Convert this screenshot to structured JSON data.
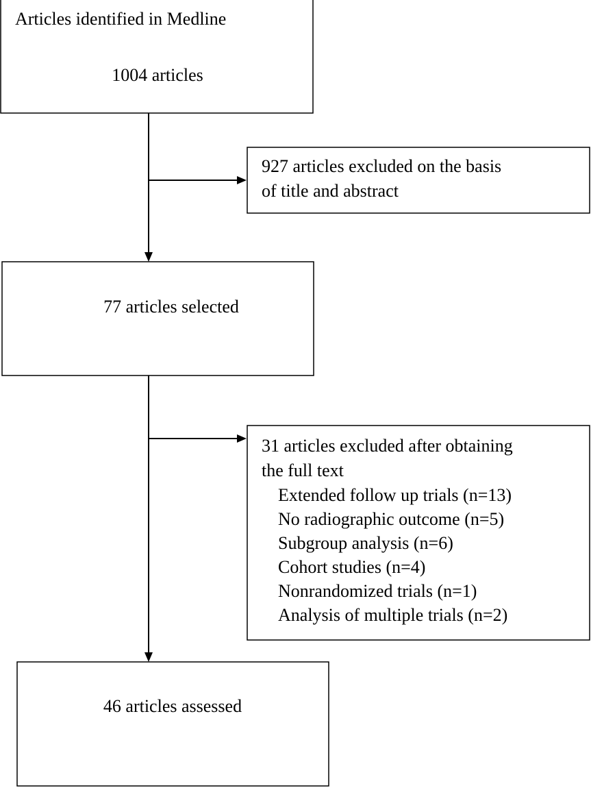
{
  "nodes": [
    {
      "lines": [
        "Articles identified in Medline",
        "1004 articles"
      ]
    },
    {
      "lines": [
        "927 articles excluded on the basis",
        "of title and abstract"
      ]
    },
    {
      "lines": [
        "77 articles selected"
      ]
    },
    {
      "lines": [
        "31 articles excluded after obtaining",
        "the full text"
      ],
      "items": [
        "Extended follow up trials (n=13)",
        "No radiographic outcome (n=5)",
        "Subgroup analysis (n=6)",
        "Cohort studies (n=4)",
        "Nonrandomized trials (n=1)",
        "Analysis of multiple trials (n=2)"
      ]
    },
    {
      "lines": [
        "46 articles assessed"
      ]
    }
  ]
}
